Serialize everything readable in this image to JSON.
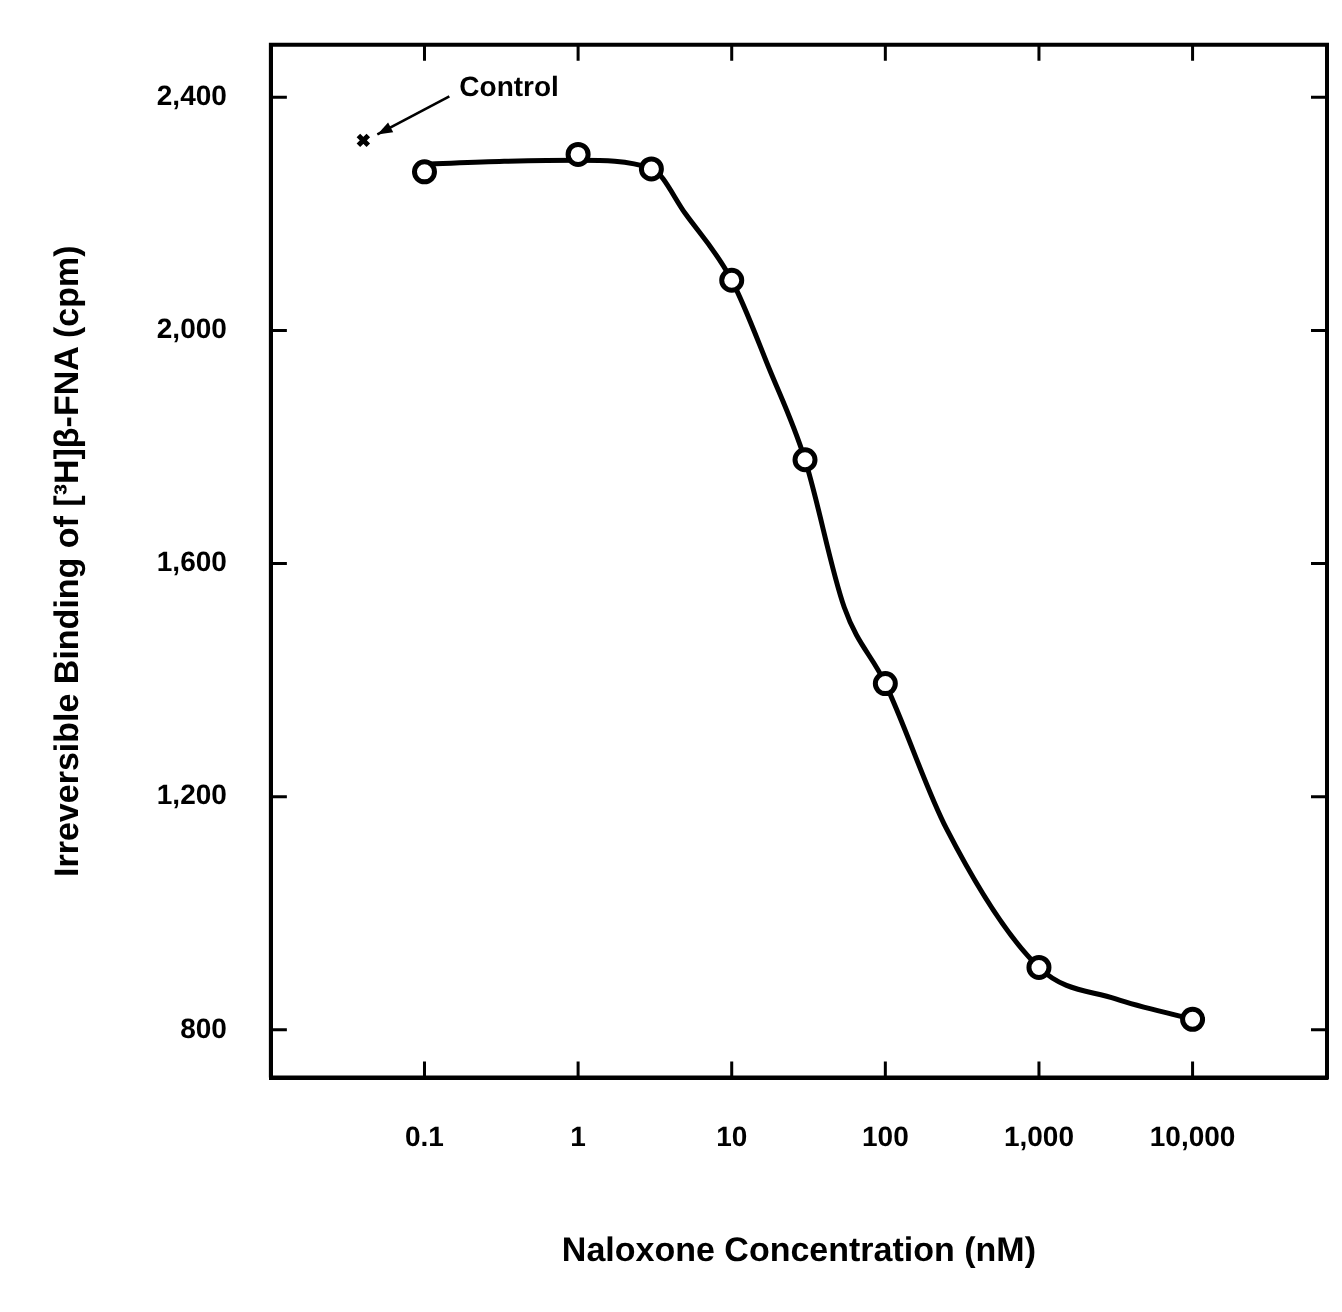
{
  "chart_data": {
    "type": "scatter",
    "xlabel": "Naloxone Concentration (nM)",
    "ylabel": "Irreversible Binding of [³H]β-FNA (cpm)",
    "log": "x",
    "xlim": [
      0.01,
      75000
    ],
    "xticks": [
      0.1,
      1,
      10,
      100,
      {
        "value": 1000,
        "label": "1,000"
      },
      {
        "value": 10000,
        "label": "10,000"
      }
    ],
    "ylim": [
      718,
      2490
    ],
    "yticks": [
      800,
      {
        "value": 1200,
        "label": "1,200"
      },
      {
        "value": 1600,
        "label": "1,600"
      },
      {
        "value": 2000,
        "label": "2,000"
      },
      {
        "value": 2400,
        "label": "2,400"
      }
    ],
    "series": [
      {
        "type": "line",
        "color": "#000000",
        "marker": "none",
        "line_style": "solid",
        "x": [
          0.1,
          0.33,
          1,
          3,
          5,
          10,
          17.5,
          30,
          54,
          100,
          250,
          1000,
          3160,
          10000
        ],
        "values": [
          2285,
          2290,
          2292,
          2278,
          2200,
          2086,
          1935,
          1778,
          1525,
          1394,
          1145,
          907,
          853,
          818
        ]
      },
      {
        "color": "#000000",
        "marker": "circle",
        "x": [
          0.1,
          1,
          3,
          10,
          30,
          100,
          1000,
          10000
        ],
        "values": [
          2272,
          2302,
          2277,
          2086,
          1778,
          1394,
          907,
          818
        ]
      },
      {
        "color": "#000000",
        "marker": "cross",
        "x": [
          0.04
        ],
        "values": [
          2326
        ]
      }
    ],
    "annotations": [
      {
        "text": "Control",
        "x": 0.04,
        "y": 2326
      }
    ]
  }
}
